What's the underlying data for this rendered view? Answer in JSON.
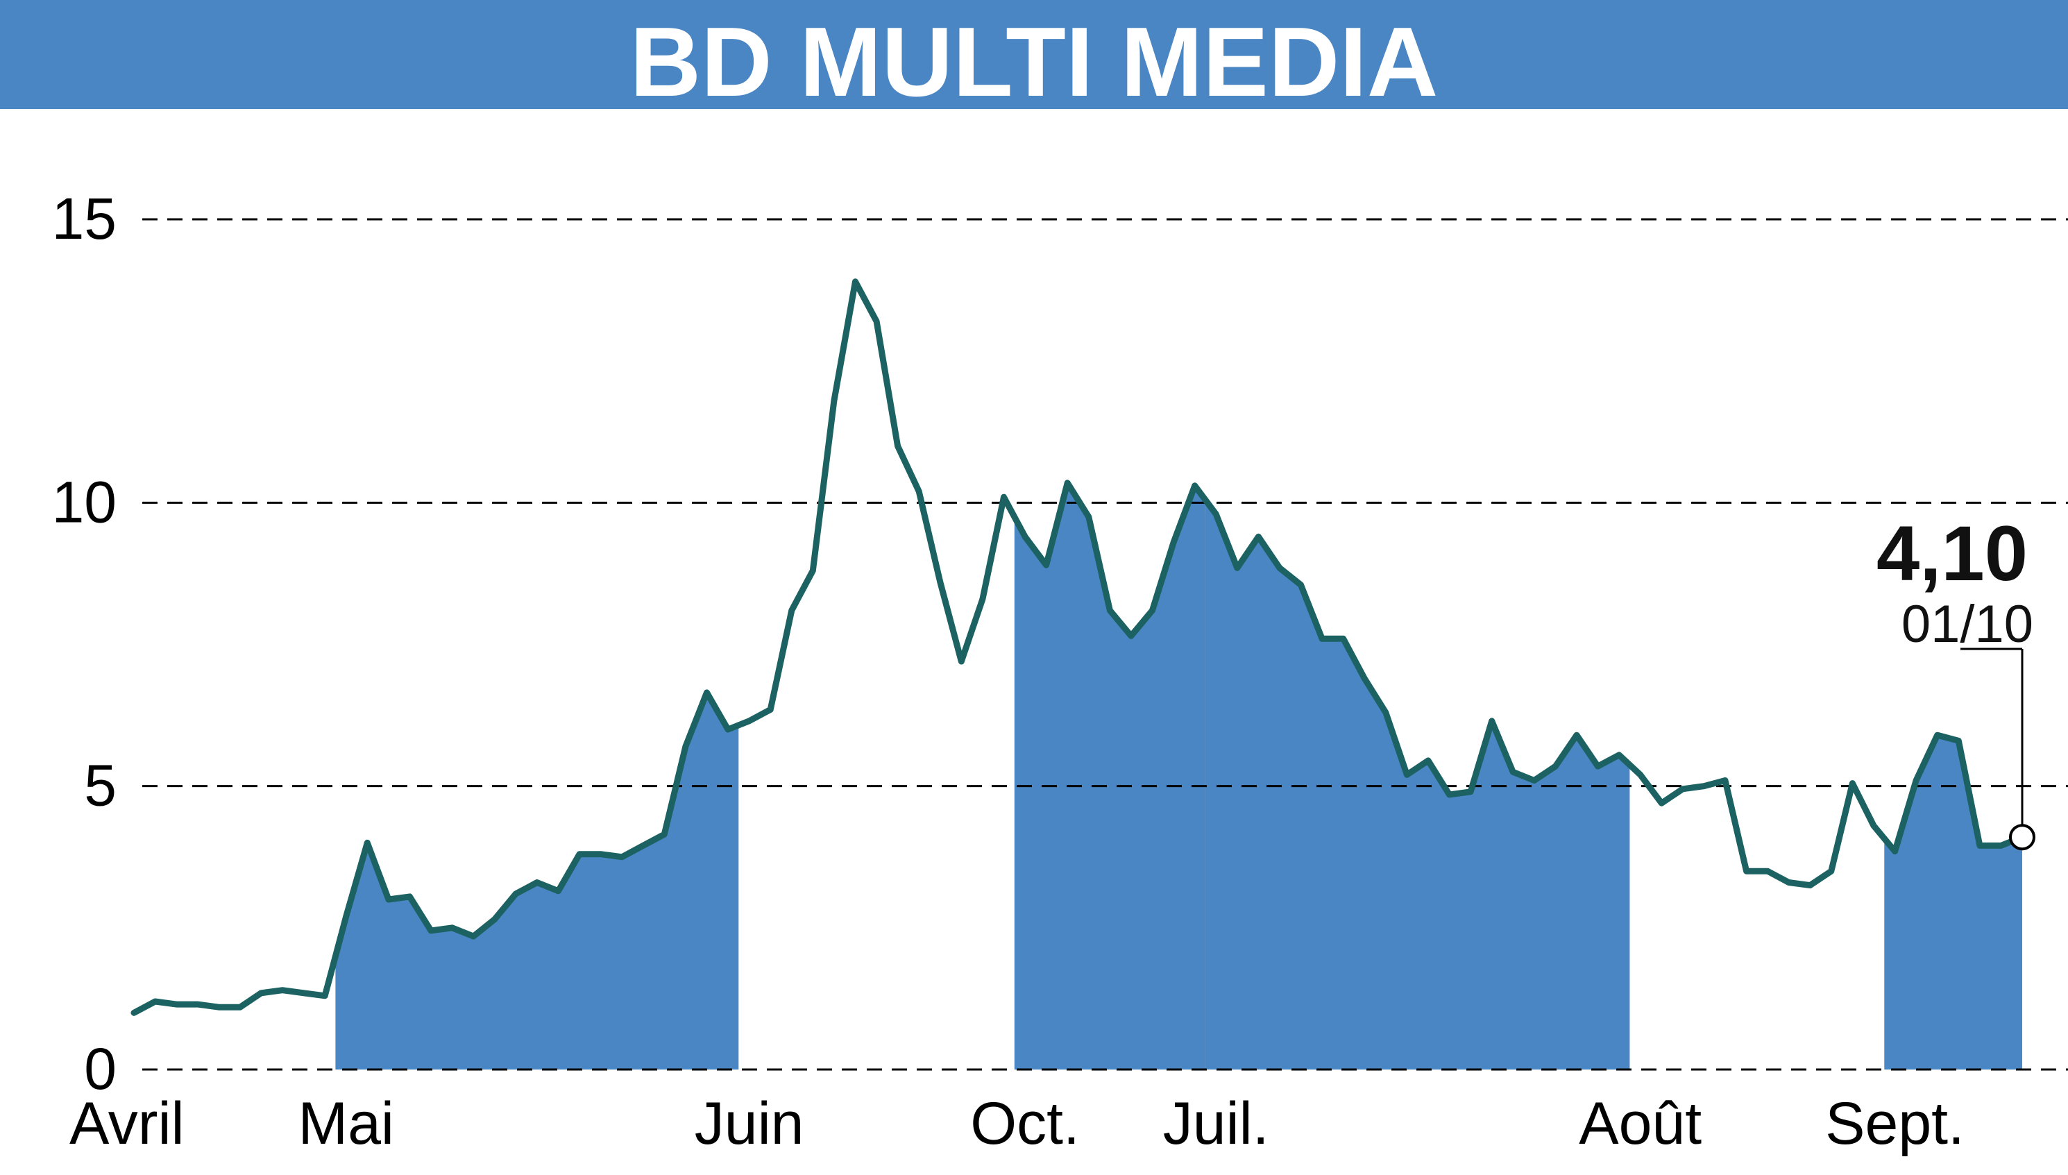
{
  "title": "BD MULTI MEDIA",
  "colors": {
    "banner": "#4a86c4",
    "fill": "#4a86c4",
    "line": "#1c6262",
    "grid": "#000000",
    "text": "#000000",
    "title_text": "#ffffff"
  },
  "chart_data": {
    "type": "line",
    "title": "BD MULTI MEDIA",
    "xlabel": "",
    "ylabel": "",
    "ylim": [
      0,
      15
    ],
    "yticks": [
      0,
      5,
      10,
      15
    ],
    "grid": "horizontal dashed",
    "months": [
      {
        "label": "Avril",
        "start": 0
      },
      {
        "label": "Mai",
        "start": 10
      },
      {
        "label": "Juin",
        "start": 29
      },
      {
        "label": "Oct.",
        "start": 42
      },
      {
        "label": "Juil.",
        "start": 51
      },
      {
        "label": "Août",
        "start": 71
      },
      {
        "label": "Sept.",
        "start": 83
      }
    ],
    "shaded_months": [
      "Mai",
      "Oct.",
      "Juil.",
      "Sept."
    ],
    "series": [
      {
        "values": [
          1.0,
          1.2,
          1.15,
          1.15,
          1.1,
          1.1,
          1.35,
          1.4,
          1.35,
          1.3,
          2.7,
          4.0,
          3.0,
          3.05,
          2.45,
          2.5,
          2.35,
          2.65,
          3.1,
          3.3,
          3.15,
          3.8,
          3.8,
          3.75,
          3.95,
          4.15,
          5.7,
          6.65,
          6.0,
          6.15,
          6.35,
          8.1,
          8.8,
          11.8,
          13.9,
          13.2,
          11.0,
          10.2,
          8.6,
          7.2,
          8.3,
          10.1,
          9.4,
          8.9,
          10.35,
          9.75,
          8.1,
          7.65,
          8.1,
          9.3,
          10.3,
          9.8,
          8.85,
          9.4,
          8.85,
          8.55,
          7.6,
          7.6,
          6.9,
          6.3,
          5.2,
          5.45,
          4.85,
          4.9,
          6.15,
          5.25,
          5.1,
          5.35,
          5.9,
          5.35,
          5.55,
          5.2,
          4.7,
          4.95,
          5.0,
          5.1,
          3.5,
          3.5,
          3.3,
          3.25,
          3.5,
          5.05,
          4.3,
          3.85,
          5.1,
          5.9,
          5.8,
          3.95,
          3.95,
          4.1
        ]
      }
    ],
    "last_value_label": "4,10",
    "last_date_label": "01/10"
  }
}
